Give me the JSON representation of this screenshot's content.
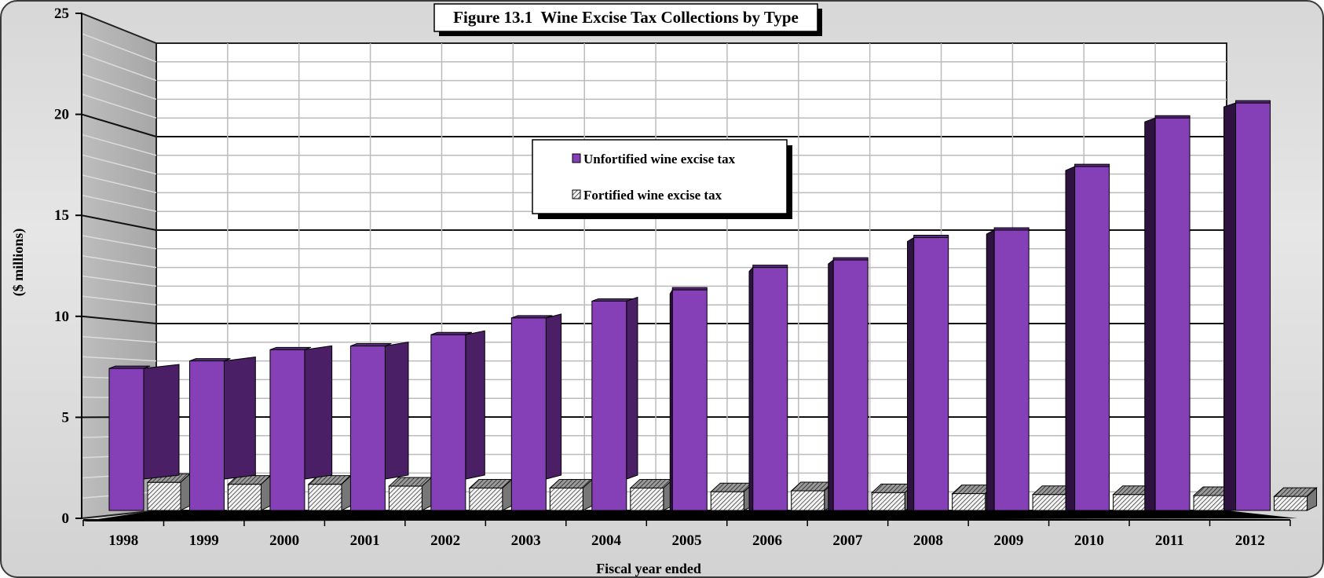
{
  "chart_data": {
    "type": "bar",
    "title": "Figure 13.1  Wine Excise Tax Collections by Type",
    "xlabel": "Fiscal year ended",
    "ylabel": "($ millions)",
    "ylim": [
      0,
      25
    ],
    "yticks": [
      "0",
      "5",
      "10",
      "15",
      "20",
      "25"
    ],
    "grid": true,
    "legend_position": "upper-center",
    "categories": [
      "1998",
      "1999",
      "2000",
      "2001",
      "2002",
      "2003",
      "2004",
      "2005",
      "2006",
      "2007",
      "2008",
      "2009",
      "2010",
      "2011",
      "2012"
    ],
    "series": [
      {
        "name": "Unfortified wine excise tax",
        "values": [
          7.6,
          8.0,
          8.6,
          8.8,
          9.4,
          10.3,
          11.2,
          11.8,
          13.0,
          13.4,
          14.6,
          15.0,
          18.4,
          21.0,
          21.8
        ],
        "color": "#8540B8"
      },
      {
        "name": "Fortified wine excise tax",
        "values": [
          1.5,
          1.4,
          1.4,
          1.3,
          1.2,
          1.2,
          1.2,
          1.0,
          1.05,
          0.95,
          0.9,
          0.85,
          0.85,
          0.8,
          0.75
        ],
        "color": "#cfcfcf"
      }
    ]
  }
}
